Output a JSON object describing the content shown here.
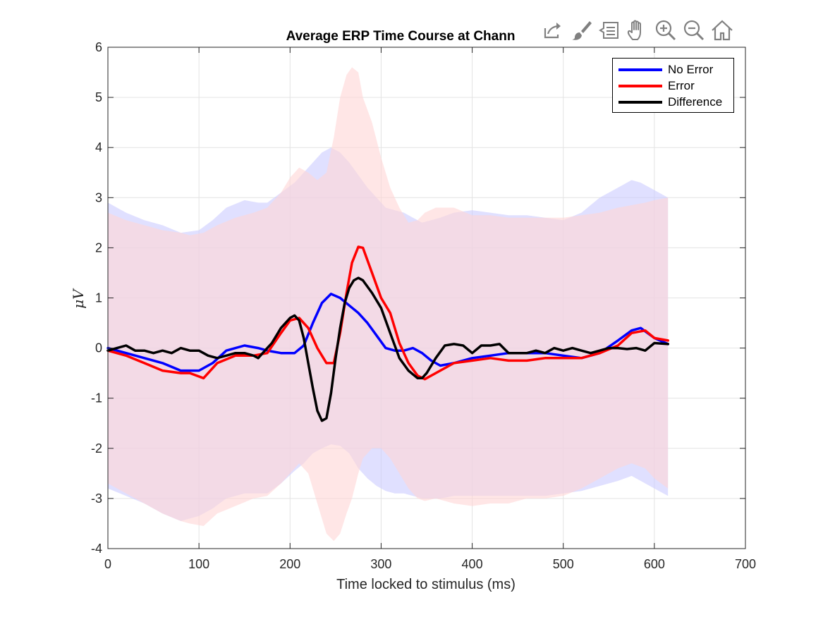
{
  "chart_data": {
    "type": "line",
    "title": "Average ERP Time Course at Chann",
    "xlabel": "Time locked to stimulus (ms)",
    "ylabel": "μV",
    "xlim": [
      0,
      700
    ],
    "ylim": [
      -4,
      6
    ],
    "xticks": [
      0,
      100,
      200,
      300,
      400,
      500,
      600,
      700
    ],
    "yticks": [
      -4,
      -3,
      -2,
      -1,
      0,
      1,
      2,
      3,
      4,
      5,
      6
    ],
    "xtick_labels": [
      "0",
      "100",
      "200",
      "300",
      "400",
      "500",
      "600",
      "700"
    ],
    "ytick_labels": [
      "-4",
      "-3",
      "-2",
      "-1",
      "0",
      "1",
      "2",
      "3",
      "4",
      "5",
      "6"
    ],
    "grid": true,
    "legend_position": "top-right",
    "series": [
      {
        "name": "No Error",
        "color": "#0000ff",
        "band_color": "#ccccff",
        "x": [
          0,
          20,
          40,
          60,
          80,
          100,
          115,
          130,
          150,
          165,
          175,
          190,
          205,
          215,
          225,
          235,
          245,
          255,
          265,
          275,
          285,
          295,
          305,
          315,
          325,
          335,
          345,
          355,
          365,
          380,
          400,
          420,
          440,
          460,
          480,
          500,
          520,
          540,
          560,
          575,
          585,
          600,
          615
        ],
        "values": [
          0.0,
          -0.1,
          -0.2,
          -0.3,
          -0.45,
          -0.45,
          -0.3,
          -0.05,
          0.05,
          0.0,
          -0.05,
          -0.1,
          -0.1,
          0.05,
          0.5,
          0.9,
          1.08,
          1.0,
          0.85,
          0.7,
          0.5,
          0.25,
          0.0,
          -0.05,
          -0.05,
          0.0,
          -0.1,
          -0.25,
          -0.35,
          -0.3,
          -0.2,
          -0.15,
          -0.1,
          -0.1,
          -0.1,
          -0.15,
          -0.2,
          -0.1,
          0.15,
          0.35,
          0.4,
          0.2,
          0.08
        ],
        "upper": [
          2.9,
          2.7,
          2.55,
          2.45,
          2.3,
          2.35,
          2.55,
          2.8,
          2.95,
          2.9,
          2.9,
          3.1,
          3.3,
          3.5,
          3.7,
          3.9,
          4.0,
          3.9,
          3.7,
          3.45,
          3.2,
          3.0,
          2.8,
          2.75,
          2.7,
          2.6,
          2.5,
          2.55,
          2.6,
          2.7,
          2.75,
          2.7,
          2.65,
          2.65,
          2.6,
          2.55,
          2.7,
          3.0,
          3.2,
          3.35,
          3.3,
          3.15,
          3.0
        ],
        "lower": [
          -2.8,
          -2.95,
          -3.1,
          -3.3,
          -3.45,
          -3.35,
          -3.2,
          -3.0,
          -2.9,
          -2.9,
          -2.9,
          -2.7,
          -2.45,
          -2.3,
          -2.1,
          -2.0,
          -1.92,
          -1.95,
          -2.1,
          -2.4,
          -2.6,
          -2.75,
          -2.85,
          -2.9,
          -2.9,
          -2.95,
          -3.0,
          -3.0,
          -3.0,
          -2.95,
          -2.95,
          -2.95,
          -2.95,
          -2.95,
          -2.95,
          -2.9,
          -2.85,
          -2.75,
          -2.65,
          -2.55,
          -2.65,
          -2.8,
          -2.95
        ]
      },
      {
        "name": "Error",
        "color": "#ff0000",
        "band_color": "#ffd6d6",
        "x": [
          0,
          20,
          40,
          60,
          80,
          90,
          105,
          120,
          140,
          160,
          175,
          190,
          200,
          210,
          220,
          230,
          240,
          248,
          255,
          262,
          268,
          275,
          280,
          290,
          300,
          310,
          320,
          330,
          340,
          348,
          360,
          380,
          400,
          420,
          440,
          460,
          480,
          500,
          520,
          540,
          560,
          575,
          590,
          600,
          615
        ],
        "values": [
          -0.05,
          -0.15,
          -0.3,
          -0.45,
          -0.5,
          -0.5,
          -0.6,
          -0.3,
          -0.15,
          -0.15,
          -0.1,
          0.3,
          0.55,
          0.6,
          0.4,
          0.0,
          -0.3,
          -0.3,
          0.3,
          1.1,
          1.7,
          2.02,
          2.0,
          1.5,
          1.0,
          0.7,
          0.1,
          -0.3,
          -0.55,
          -0.62,
          -0.5,
          -0.3,
          -0.25,
          -0.2,
          -0.25,
          -0.25,
          -0.2,
          -0.2,
          -0.2,
          -0.1,
          0.05,
          0.3,
          0.35,
          0.2,
          0.15
        ],
        "upper": [
          2.7,
          2.55,
          2.45,
          2.35,
          2.3,
          2.25,
          2.3,
          2.45,
          2.6,
          2.7,
          2.8,
          3.1,
          3.4,
          3.6,
          3.5,
          3.35,
          3.5,
          4.2,
          5.0,
          5.45,
          5.6,
          5.5,
          5.0,
          4.5,
          3.8,
          3.2,
          2.8,
          2.5,
          2.55,
          2.7,
          2.8,
          2.8,
          2.65,
          2.65,
          2.6,
          2.6,
          2.6,
          2.6,
          2.65,
          2.7,
          2.8,
          2.85,
          2.9,
          2.95,
          3.0
        ],
        "lower": [
          -2.7,
          -2.9,
          -3.1,
          -3.3,
          -3.45,
          -3.5,
          -3.55,
          -3.3,
          -3.15,
          -3.0,
          -2.95,
          -2.7,
          -2.5,
          -2.3,
          -2.5,
          -3.1,
          -3.7,
          -3.85,
          -3.7,
          -3.3,
          -3.0,
          -2.5,
          -2.2,
          -2.0,
          -2.0,
          -2.2,
          -2.5,
          -2.8,
          -3.0,
          -3.05,
          -3.0,
          -3.1,
          -3.15,
          -3.1,
          -3.1,
          -3.0,
          -3.0,
          -2.95,
          -2.8,
          -2.6,
          -2.4,
          -2.3,
          -2.4,
          -2.6,
          -2.8
        ]
      },
      {
        "name": "Difference",
        "color": "#000000",
        "x": [
          0,
          10,
          20,
          30,
          40,
          50,
          60,
          70,
          80,
          90,
          100,
          110,
          120,
          130,
          140,
          150,
          160,
          165,
          170,
          180,
          190,
          200,
          205,
          210,
          215,
          220,
          225,
          230,
          235,
          240,
          245,
          250,
          255,
          260,
          265,
          270,
          275,
          280,
          290,
          300,
          310,
          320,
          330,
          340,
          345,
          350,
          360,
          370,
          380,
          390,
          400,
          410,
          420,
          430,
          440,
          450,
          460,
          470,
          480,
          490,
          500,
          510,
          520,
          530,
          540,
          550,
          560,
          570,
          580,
          590,
          600,
          615
        ],
        "values": [
          -0.05,
          0.0,
          0.05,
          -0.05,
          -0.05,
          -0.1,
          -0.05,
          -0.1,
          0.0,
          -0.05,
          -0.05,
          -0.15,
          -0.2,
          -0.15,
          -0.1,
          -0.1,
          -0.15,
          -0.2,
          -0.1,
          0.1,
          0.4,
          0.6,
          0.65,
          0.55,
          0.2,
          -0.3,
          -0.8,
          -1.25,
          -1.45,
          -1.4,
          -0.9,
          -0.2,
          0.4,
          0.9,
          1.2,
          1.35,
          1.4,
          1.35,
          1.1,
          0.8,
          0.3,
          -0.2,
          -0.45,
          -0.6,
          -0.6,
          -0.5,
          -0.2,
          0.05,
          0.08,
          0.05,
          -0.1,
          0.05,
          0.05,
          0.08,
          -0.1,
          -0.1,
          -0.1,
          -0.05,
          -0.1,
          0.0,
          -0.05,
          0.0,
          -0.05,
          -0.1,
          -0.05,
          0.0,
          0.0,
          -0.02,
          0.0,
          -0.05,
          0.1,
          0.08
        ]
      }
    ]
  },
  "toolbar": {
    "buttons": [
      {
        "icon": "export-icon"
      },
      {
        "icon": "brush-icon"
      },
      {
        "icon": "datatip-icon"
      },
      {
        "icon": "pan-icon"
      },
      {
        "icon": "zoom-in-icon"
      },
      {
        "icon": "zoom-out-icon"
      },
      {
        "icon": "home-icon"
      }
    ]
  }
}
